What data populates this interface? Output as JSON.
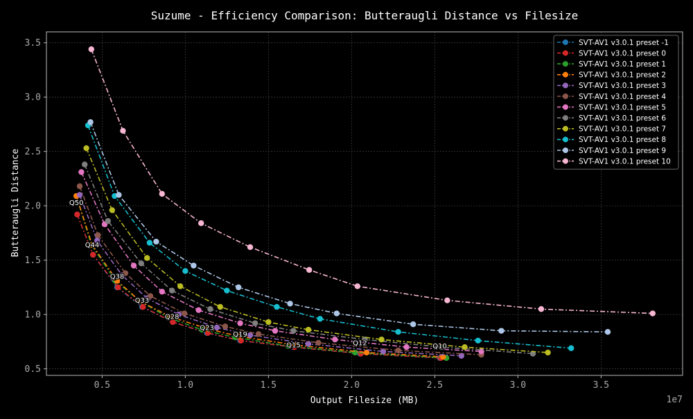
{
  "chart_data": {
    "type": "line",
    "title": "Suzume - Efficiency Comparison: Butteraugli Distance vs Filesize",
    "xlabel": "Output Filesize (MB)",
    "ylabel": "Butteraugli Distance",
    "x_offset_text": "1e7",
    "xlim": [
      1650000,
      39900000
    ],
    "ylim": [
      0.44,
      3.6
    ],
    "xticks": [
      5000000,
      10000000,
      15000000,
      20000000,
      25000000,
      30000000,
      35000000
    ],
    "xtick_labels": [
      "0.5",
      "1.0",
      "1.5",
      "2.0",
      "2.5",
      "3.0",
      "3.5"
    ],
    "yticks": [
      0.5,
      1.0,
      1.5,
      2.0,
      2.5,
      3.0,
      3.5
    ],
    "ytick_labels": [
      "0.5",
      "1.0",
      "1.5",
      "2.0",
      "2.5",
      "3.0",
      "3.5"
    ],
    "grid": true,
    "legend_position": "top-right",
    "series": [
      {
        "name": "SVT-AV1 v3.0.1 preset -1",
        "color": "#1f77b4",
        "x": [
          3500000,
          4450000,
          5900000,
          7400000,
          9250000,
          11300000,
          13300000,
          16500000,
          20500000,
          25300000
        ],
        "y": [
          1.92,
          1.55,
          1.25,
          1.07,
          0.93,
          0.83,
          0.76,
          0.7,
          0.64,
          0.6
        ]
      },
      {
        "name": "SVT-AV1 v3.0.1 preset 0",
        "color": "#d62728",
        "x": [
          3500000,
          4450000,
          5950000,
          7450000,
          9250000,
          11350000,
          13350000,
          16550000,
          20550000,
          25350000
        ],
        "y": [
          1.92,
          1.55,
          1.25,
          1.07,
          0.93,
          0.83,
          0.76,
          0.7,
          0.64,
          0.6
        ]
      },
      {
        "name": "SVT-AV1 v3.0.1 preset 1",
        "color": "#2ca02c",
        "x": [
          3450000,
          4350000,
          5800000,
          7300000,
          9000000,
          11000000,
          13000000,
          16200000,
          20200000,
          25700000
        ],
        "y": [
          2.09,
          1.64,
          1.31,
          1.12,
          0.97,
          0.86,
          0.79,
          0.71,
          0.65,
          0.6
        ]
      },
      {
        "name": "SVT-AV1 v3.0.1 preset 2",
        "color": "#ff7f0e",
        "x": [
          3450000,
          4400000,
          5900000,
          7300000,
          9100000,
          11300000,
          13200000,
          16600000,
          20900000,
          25500000
        ],
        "y": [
          2.09,
          1.64,
          1.31,
          1.12,
          0.98,
          0.87,
          0.8,
          0.72,
          0.65,
          0.61
        ]
      },
      {
        "name": "SVT-AV1 v3.0.1 preset 3",
        "color": "#9467bd",
        "x": [
          3650000,
          4700000,
          6200000,
          7700000,
          9600000,
          11900000,
          13900000,
          17400000,
          21900000,
          26600000
        ],
        "y": [
          2.1,
          1.68,
          1.36,
          1.15,
          1.0,
          0.88,
          0.81,
          0.73,
          0.66,
          0.62
        ]
      },
      {
        "name": "SVT-AV1 v3.0.1 preset 4",
        "color": "#8c564b",
        "x": [
          3650000,
          4750000,
          6400000,
          7900000,
          9950000,
          12400000,
          14400000,
          18000000,
          22800000,
          27800000
        ],
        "y": [
          2.18,
          1.73,
          1.38,
          1.17,
          1.01,
          0.89,
          0.82,
          0.74,
          0.67,
          0.63
        ]
      },
      {
        "name": "SVT-AV1 v3.0.1 preset 5",
        "color": "#e377c2",
        "x": [
          3750000,
          5150000,
          6900000,
          8600000,
          10800000,
          13300000,
          15400000,
          19000000,
          23300000,
          27800000
        ],
        "y": [
          2.31,
          1.83,
          1.45,
          1.21,
          1.04,
          0.92,
          0.85,
          0.77,
          0.7,
          0.66
        ]
      },
      {
        "name": "SVT-AV1 v3.0.1 preset 6",
        "color": "#7f7f7f",
        "x": [
          3950000,
          5350000,
          7350000,
          9200000,
          11500000,
          14200000,
          16500000,
          20800000,
          25400000,
          30900000
        ],
        "y": [
          2.38,
          1.86,
          1.47,
          1.22,
          1.05,
          0.92,
          0.85,
          0.77,
          0.7,
          0.64
        ]
      },
      {
        "name": "SVT-AV1 v3.0.1 preset 7",
        "color": "#bcbd22",
        "x": [
          4050000,
          5600000,
          7700000,
          9700000,
          12100000,
          15000000,
          17400000,
          21800000,
          26800000,
          31800000
        ],
        "y": [
          2.53,
          1.96,
          1.52,
          1.26,
          1.07,
          0.93,
          0.86,
          0.77,
          0.7,
          0.65
        ]
      },
      {
        "name": "SVT-AV1 v3.0.1 preset 8",
        "color": "#17becf",
        "x": [
          4150000,
          5750000,
          7850000,
          10000000,
          12500000,
          15500000,
          18100000,
          22800000,
          27600000,
          33200000
        ],
        "y": [
          2.74,
          2.09,
          1.66,
          1.4,
          1.22,
          1.07,
          0.96,
          0.84,
          0.76,
          0.69
        ]
      },
      {
        "name": "SVT-AV1 v3.0.1 preset 9",
        "color": "#aec7e8",
        "x": [
          4300000,
          6000000,
          8250000,
          10500000,
          13200000,
          16300000,
          19100000,
          23700000,
          29000000,
          35400000
        ],
        "y": [
          2.77,
          2.1,
          1.67,
          1.45,
          1.25,
          1.1,
          1.01,
          0.91,
          0.85,
          0.84
        ]
      },
      {
        "name": "SVT-AV1 v3.0.1 preset 10",
        "color": "#f7b6d2",
        "x": [
          4350000,
          6250000,
          8600000,
          10950000,
          13900000,
          17450000,
          20350000,
          25750000,
          31400000,
          38100000
        ],
        "y": [
          3.44,
          2.69,
          2.11,
          1.84,
          1.62,
          1.41,
          1.26,
          1.13,
          1.05,
          1.01
        ]
      }
    ],
    "annotations": [
      {
        "text": "Q50",
        "x": 3450000,
        "y": 2.03
      },
      {
        "text": "Q44",
        "x": 4400000,
        "y": 1.64
      },
      {
        "text": "Q38",
        "x": 5900000,
        "y": 1.35
      },
      {
        "text": "Q33",
        "x": 7400000,
        "y": 1.13
      },
      {
        "text": "Q28",
        "x": 9200000,
        "y": 0.98
      },
      {
        "text": "Q23",
        "x": 11300000,
        "y": 0.88
      },
      {
        "text": "Q19",
        "x": 13300000,
        "y": 0.82
      },
      {
        "text": "Q15",
        "x": 16500000,
        "y": 0.72
      },
      {
        "text": "Q12",
        "x": 20500000,
        "y": 0.74
      },
      {
        "text": "Q10",
        "x": 25300000,
        "y": 0.71
      }
    ]
  }
}
